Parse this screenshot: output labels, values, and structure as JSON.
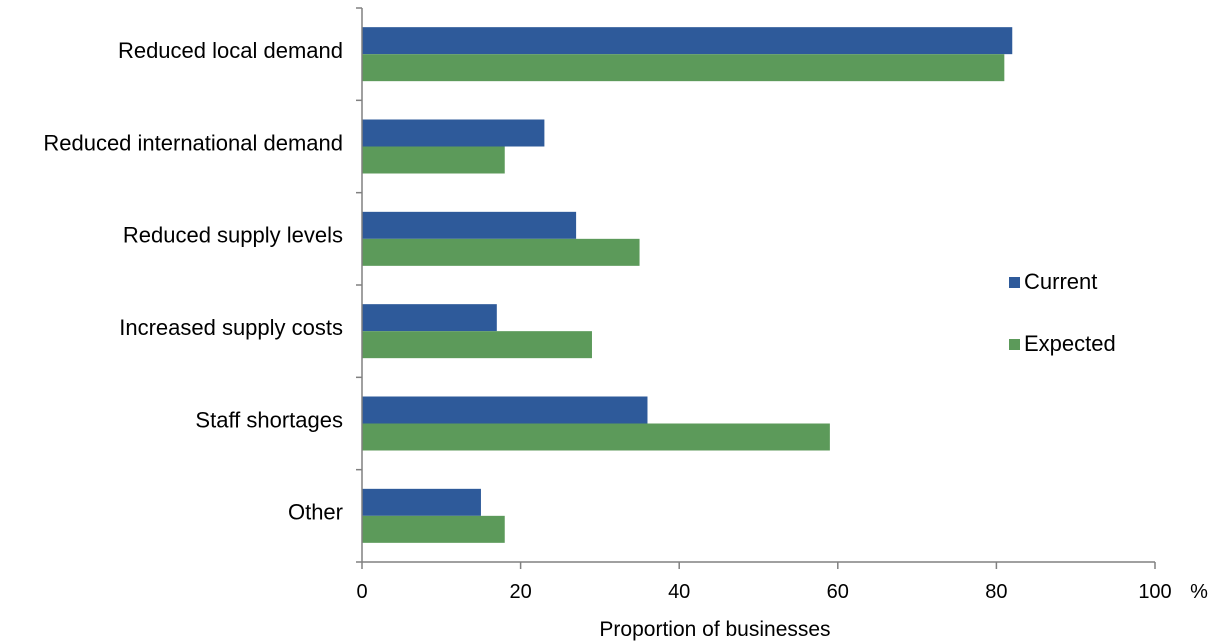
{
  "chart_data": {
    "type": "bar",
    "orientation": "horizontal",
    "categories": [
      "Reduced local demand",
      "Reduced international demand",
      "Reduced supply levels",
      "Increased supply costs",
      "Staff shortages",
      "Other"
    ],
    "series": [
      {
        "name": "Current",
        "color": "#2e5a9a",
        "values": [
          82,
          23,
          27,
          17,
          36,
          15
        ]
      },
      {
        "name": "Expected",
        "color": "#5c9a5a",
        "values": [
          81,
          18,
          35,
          29,
          59,
          18
        ]
      }
    ],
    "xlabel": "Proportion of businesses",
    "x_unit": "%",
    "xlim": [
      0,
      100
    ],
    "x_ticks": [
      0,
      20,
      40,
      60,
      80,
      100
    ],
    "x_tick_labels": [
      "0",
      "20",
      "40",
      "60",
      "80",
      "100"
    ],
    "grid": false,
    "legend_position": "right"
  }
}
